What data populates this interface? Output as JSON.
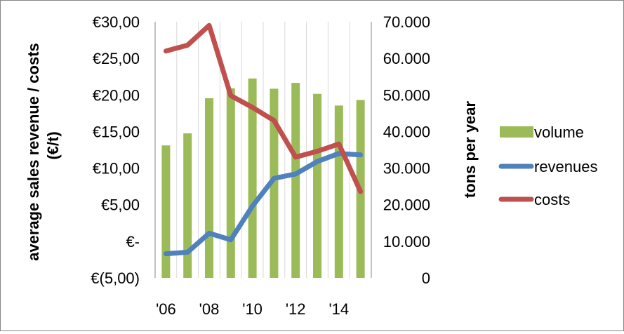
{
  "chart_data": {
    "type": "bar+line",
    "x_categories": [
      "2006",
      "2007",
      "2008",
      "2009",
      "2010",
      "2011",
      "2012",
      "2013",
      "2014",
      "2015"
    ],
    "x_tick_labels": [
      "'06",
      "'08",
      "'10",
      "'12",
      "'14"
    ],
    "y_left": {
      "label": "average sales revenue / costs (€/t)",
      "label_lines": [
        "average sales revenue / costs",
        "(€/t)"
      ],
      "range": [
        -5,
        30
      ],
      "tick_values": [
        30,
        25,
        20,
        15,
        10,
        5,
        0,
        -5
      ],
      "tick_labels": [
        "€30,00",
        "€25,00",
        "€20,00",
        "€15,00",
        "€10,00",
        "€5,00",
        "€-",
        "€(5,00)"
      ]
    },
    "y_right": {
      "label": "tons per year",
      "range": [
        0,
        70000
      ],
      "tick_values": [
        70000,
        60000,
        50000,
        40000,
        30000,
        20000,
        10000,
        0
      ],
      "tick_labels": [
        "70.000",
        "60.000",
        "50.000",
        "40.000",
        "30.000",
        "20.000",
        "10.000",
        "0"
      ]
    },
    "grid": {
      "vertical": true,
      "horizontal": false
    },
    "legend_position": "right",
    "series": [
      {
        "name": "volume",
        "type": "bar",
        "axis": "right",
        "color": "#9BBB59",
        "values": [
          36200,
          39500,
          49100,
          51800,
          54500,
          51700,
          53300,
          50300,
          47100,
          48600
        ]
      },
      {
        "name": "revenues",
        "type": "line",
        "axis": "left",
        "color": "#4F81BD",
        "values": [
          -1.7,
          -1.5,
          1.1,
          0.2,
          4.8,
          8.6,
          9.2,
          10.9,
          12.0,
          11.8
        ]
      },
      {
        "name": "costs",
        "type": "line",
        "axis": "left",
        "color": "#C0504D",
        "values": [
          26.0,
          26.8,
          29.5,
          19.9,
          18.3,
          16.5,
          11.5,
          12.3,
          13.3,
          6.8
        ]
      }
    ]
  }
}
